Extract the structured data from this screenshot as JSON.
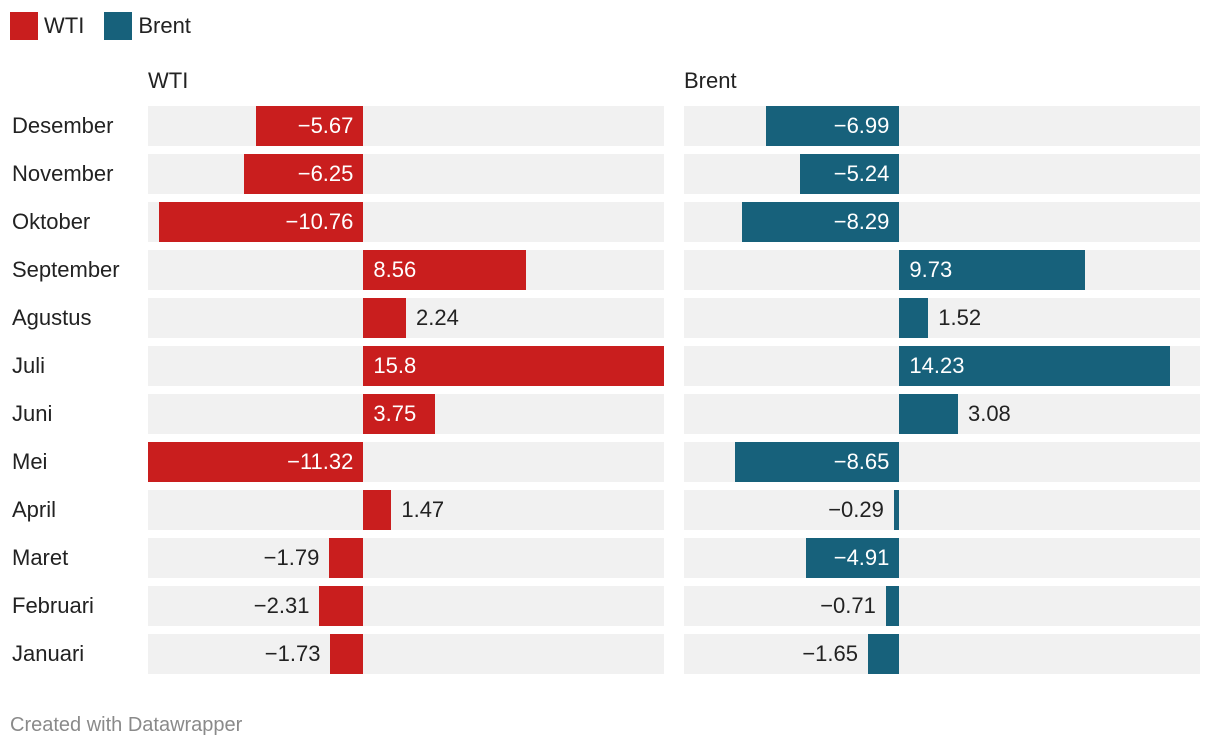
{
  "legend": [
    {
      "label": "WTI",
      "color": "#c91e1e"
    },
    {
      "label": "Brent",
      "color": "#17617b"
    }
  ],
  "footer": "Created with Datawrapper",
  "chart_data": {
    "type": "bar",
    "orientation": "horizontal",
    "categories": [
      "Desember",
      "November",
      "Oktober",
      "September",
      "Agustus",
      "Juli",
      "Juni",
      "Mei",
      "April",
      "Maret",
      "Februari",
      "Januari"
    ],
    "series": [
      {
        "name": "WTI",
        "color": "#c91e1e",
        "values": [
          -5.67,
          -6.25,
          -10.76,
          8.56,
          2.24,
          15.8,
          3.75,
          -11.32,
          1.47,
          -1.79,
          -2.31,
          -1.73
        ],
        "labels": [
          "−5.67",
          "−6.25",
          "−10.76",
          "8.56",
          "2.24",
          "15.8",
          "3.75",
          "−11.32",
          "1.47",
          "−1.79",
          "−2.31",
          "−1.73"
        ]
      },
      {
        "name": "Brent",
        "color": "#17617b",
        "values": [
          -6.99,
          -5.24,
          -8.29,
          9.73,
          1.52,
          14.23,
          3.08,
          -8.65,
          -0.29,
          -4.91,
          -0.71,
          -1.65
        ],
        "labels": [
          "−6.99",
          "−5.24",
          "−8.29",
          "9.73",
          "1.52",
          "14.23",
          "3.08",
          "−8.65",
          "−0.29",
          "−4.91",
          "−0.71",
          "−1.65"
        ]
      }
    ],
    "xlim": [
      -11.32,
      15.8
    ],
    "grid": false,
    "legend_position": "top-left"
  }
}
